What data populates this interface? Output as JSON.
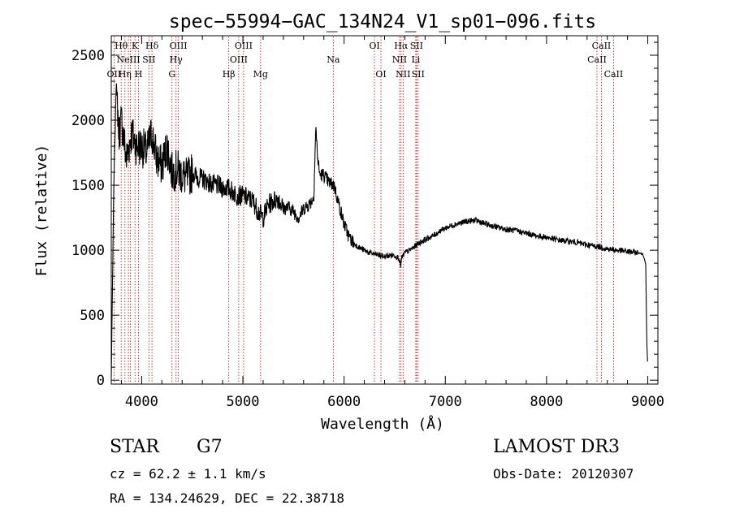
{
  "chart_data": {
    "type": "line",
    "title": "spec−55994−GAC_134N24_V1_sp01−096.fits",
    "xlabel": "Wavelength (Å)",
    "ylabel": "Flux (relative)",
    "xlim": [
      3700,
      9100
    ],
    "ylim": [
      -30,
      2650
    ],
    "xticks": [
      4000,
      5000,
      6000,
      7000,
      8000,
      9000
    ],
    "xtick_labels": [
      "4000",
      "5000",
      "6000",
      "7000",
      "8000",
      "9000"
    ],
    "yticks": [
      0,
      500,
      1000,
      1500,
      2000,
      2500
    ],
    "ytick_labels": [
      "0",
      "500",
      "1000",
      "1500",
      "2000",
      "2500"
    ],
    "grid": false,
    "series": [
      {
        "name": "flux",
        "color": "#000000",
        "x": [
          3700,
          3725,
          3750,
          3775,
          3800,
          3850,
          3900,
          3950,
          4000,
          4050,
          4100,
          4150,
          4200,
          4250,
          4300,
          4350,
          4400,
          4450,
          4500,
          4550,
          4600,
          4650,
          4700,
          4750,
          4800,
          4850,
          4900,
          4950,
          5000,
          5050,
          5100,
          5150,
          5200,
          5250,
          5300,
          5350,
          5400,
          5450,
          5500,
          5550,
          5600,
          5650,
          5700,
          5720,
          5740,
          5760,
          5800,
          5850,
          5900,
          5950,
          6000,
          6050,
          6100,
          6150,
          6200,
          6250,
          6300,
          6350,
          6400,
          6450,
          6500,
          6540,
          6560,
          6563,
          6570,
          6600,
          6650,
          6700,
          6750,
          6800,
          6850,
          6900,
          6950,
          7000,
          7100,
          7200,
          7300,
          7400,
          7500,
          7600,
          7700,
          7800,
          7900,
          8000,
          8100,
          8200,
          8300,
          8400,
          8500,
          8600,
          8700,
          8800,
          8900,
          8950,
          8980,
          8990,
          9000
        ],
        "y": [
          20,
          1500,
          2300,
          1900,
          2000,
          1700,
          1900,
          1800,
          1800,
          1750,
          1900,
          1700,
          1650,
          1800,
          1600,
          1620,
          1580,
          1550,
          1600,
          1560,
          1550,
          1530,
          1500,
          1500,
          1480,
          1480,
          1450,
          1420,
          1420,
          1400,
          1380,
          1300,
          1250,
          1350,
          1380,
          1400,
          1320,
          1330,
          1300,
          1250,
          1320,
          1350,
          1400,
          1950,
          1700,
          1580,
          1580,
          1520,
          1500,
          1350,
          1200,
          1100,
          1050,
          1020,
          1000,
          980,
          970,
          960,
          950,
          960,
          960,
          940,
          880,
          900,
          940,
          980,
          1000,
          1030,
          1060,
          1080,
          1100,
          1120,
          1150,
          1170,
          1200,
          1220,
          1230,
          1200,
          1180,
          1160,
          1150,
          1130,
          1110,
          1100,
          1080,
          1070,
          1060,
          1040,
          1030,
          1010,
          1000,
          990,
          980,
          970,
          900,
          300,
          100
        ]
      }
    ],
    "lines": [
      {
        "wave": 3727,
        "labels": [
          {
            "text": "OII",
            "row": 2
          }
        ]
      },
      {
        "wave": 3798,
        "labels": [
          {
            "text": "Hθ",
            "row": 0
          }
        ]
      },
      {
        "wave": 3835,
        "labels": [
          {
            "text": "Hη",
            "row": 2
          }
        ]
      },
      {
        "wave": 3869,
        "labels": [
          {
            "text": "NeIII",
            "row": 1
          }
        ]
      },
      {
        "wave": 3889,
        "labels": []
      },
      {
        "wave": 3934,
        "labels": [
          {
            "text": "K",
            "row": 0
          }
        ]
      },
      {
        "wave": 3969,
        "labels": [
          {
            "text": "H",
            "row": 2
          }
        ]
      },
      {
        "wave": 4072,
        "labels": [
          {
            "text": "SII",
            "row": 1
          }
        ]
      },
      {
        "wave": 4102,
        "labels": [
          {
            "text": "Hδ",
            "row": 0
          }
        ]
      },
      {
        "wave": 4300,
        "labels": [
          {
            "text": "G",
            "row": 2
          }
        ]
      },
      {
        "wave": 4340,
        "labels": [
          {
            "text": "Hγ",
            "row": 1
          }
        ]
      },
      {
        "wave": 4363,
        "labels": [
          {
            "text": "OIII",
            "row": 0
          }
        ]
      },
      {
        "wave": 4861,
        "labels": [
          {
            "text": "Hβ",
            "row": 2
          }
        ]
      },
      {
        "wave": 4959,
        "labels": [
          {
            "text": "OIII",
            "row": 1
          }
        ]
      },
      {
        "wave": 5007,
        "labels": [
          {
            "text": "OIII",
            "row": 0
          }
        ]
      },
      {
        "wave": 5175,
        "labels": [
          {
            "text": "Mg",
            "row": 2
          }
        ]
      },
      {
        "wave": 5893,
        "labels": [
          {
            "text": "Na",
            "row": 1
          }
        ]
      },
      {
        "wave": 6300,
        "labels": [
          {
            "text": "OI",
            "row": 0
          }
        ]
      },
      {
        "wave": 6364,
        "labels": [
          {
            "text": "OI",
            "row": 2
          }
        ]
      },
      {
        "wave": 6548,
        "labels": [
          {
            "text": "NII",
            "row": 1
          }
        ]
      },
      {
        "wave": 6563,
        "labels": [
          {
            "text": "Hα",
            "row": 0
          }
        ]
      },
      {
        "wave": 6583,
        "labels": [
          {
            "text": "NII",
            "row": 2
          }
        ]
      },
      {
        "wave": 6708,
        "labels": [
          {
            "text": "Li",
            "row": 1
          }
        ]
      },
      {
        "wave": 6716,
        "labels": [
          {
            "text": "SII",
            "row": 0
          }
        ]
      },
      {
        "wave": 6731,
        "labels": [
          {
            "text": "SII",
            "row": 2
          }
        ]
      },
      {
        "wave": 8498,
        "labels": [
          {
            "text": "CaII",
            "row": 1
          }
        ]
      },
      {
        "wave": 8542,
        "labels": [
          {
            "text": "CaII",
            "row": 0
          }
        ]
      },
      {
        "wave": 8662,
        "labels": [
          {
            "text": "CaII",
            "row": 2
          }
        ]
      }
    ],
    "line_color": "#cc0000"
  },
  "info": {
    "object_class": "STAR",
    "subclass": "G7",
    "survey": "LAMOST DR3",
    "redshift": "cz = 62.2 ± 1.1 km/s",
    "obs_date": "Obs-Date: 20120307",
    "coords": "RA = 134.24629, DEC =  22.38718"
  }
}
